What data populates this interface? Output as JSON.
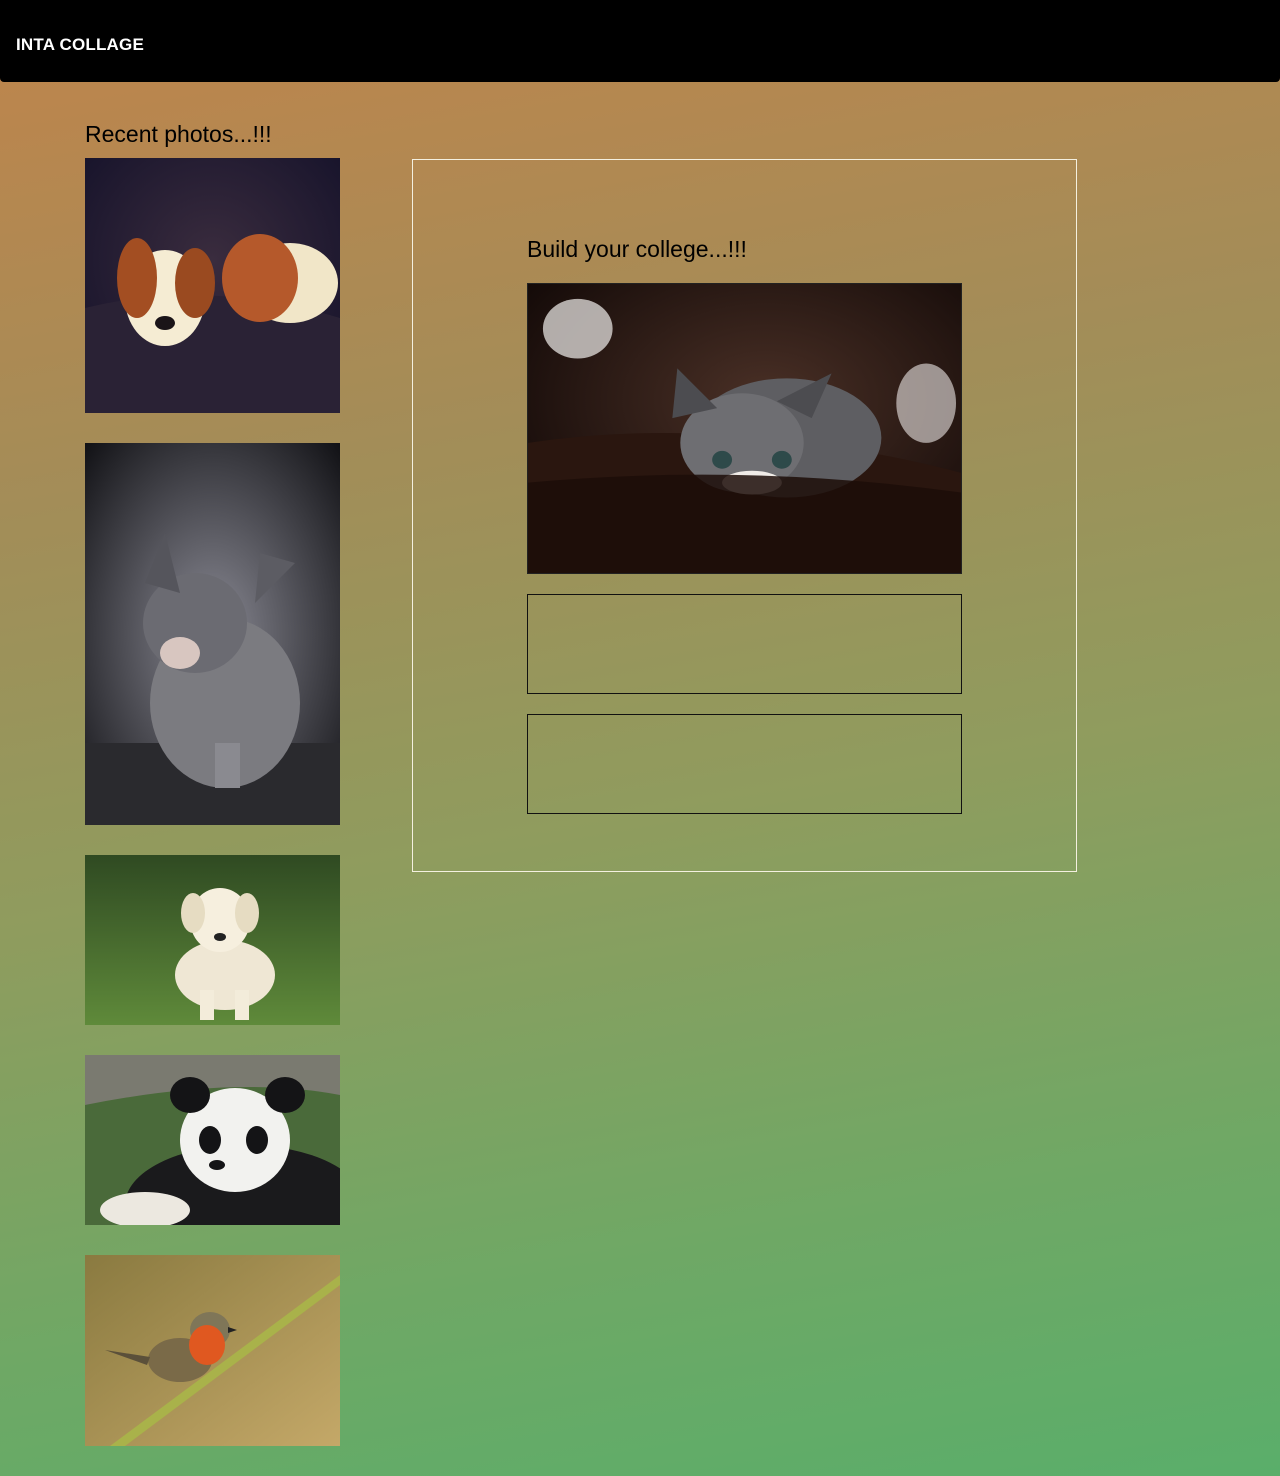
{
  "navbar": {
    "brand": "INTA COLLAGE"
  },
  "recent": {
    "title": "Recent photos...!!!",
    "photos": [
      {
        "subject": "sleeping puppy"
      },
      {
        "subject": "grey tabby kitten grooming"
      },
      {
        "subject": "white labrador puppy on grass"
      },
      {
        "subject": "panda cub"
      },
      {
        "subject": "robin on branch"
      }
    ]
  },
  "builder": {
    "title": "Build your college...!!!",
    "main_photo": {
      "subject": "grey kitten peeking over blanket"
    },
    "slots": [
      {},
      {}
    ]
  }
}
